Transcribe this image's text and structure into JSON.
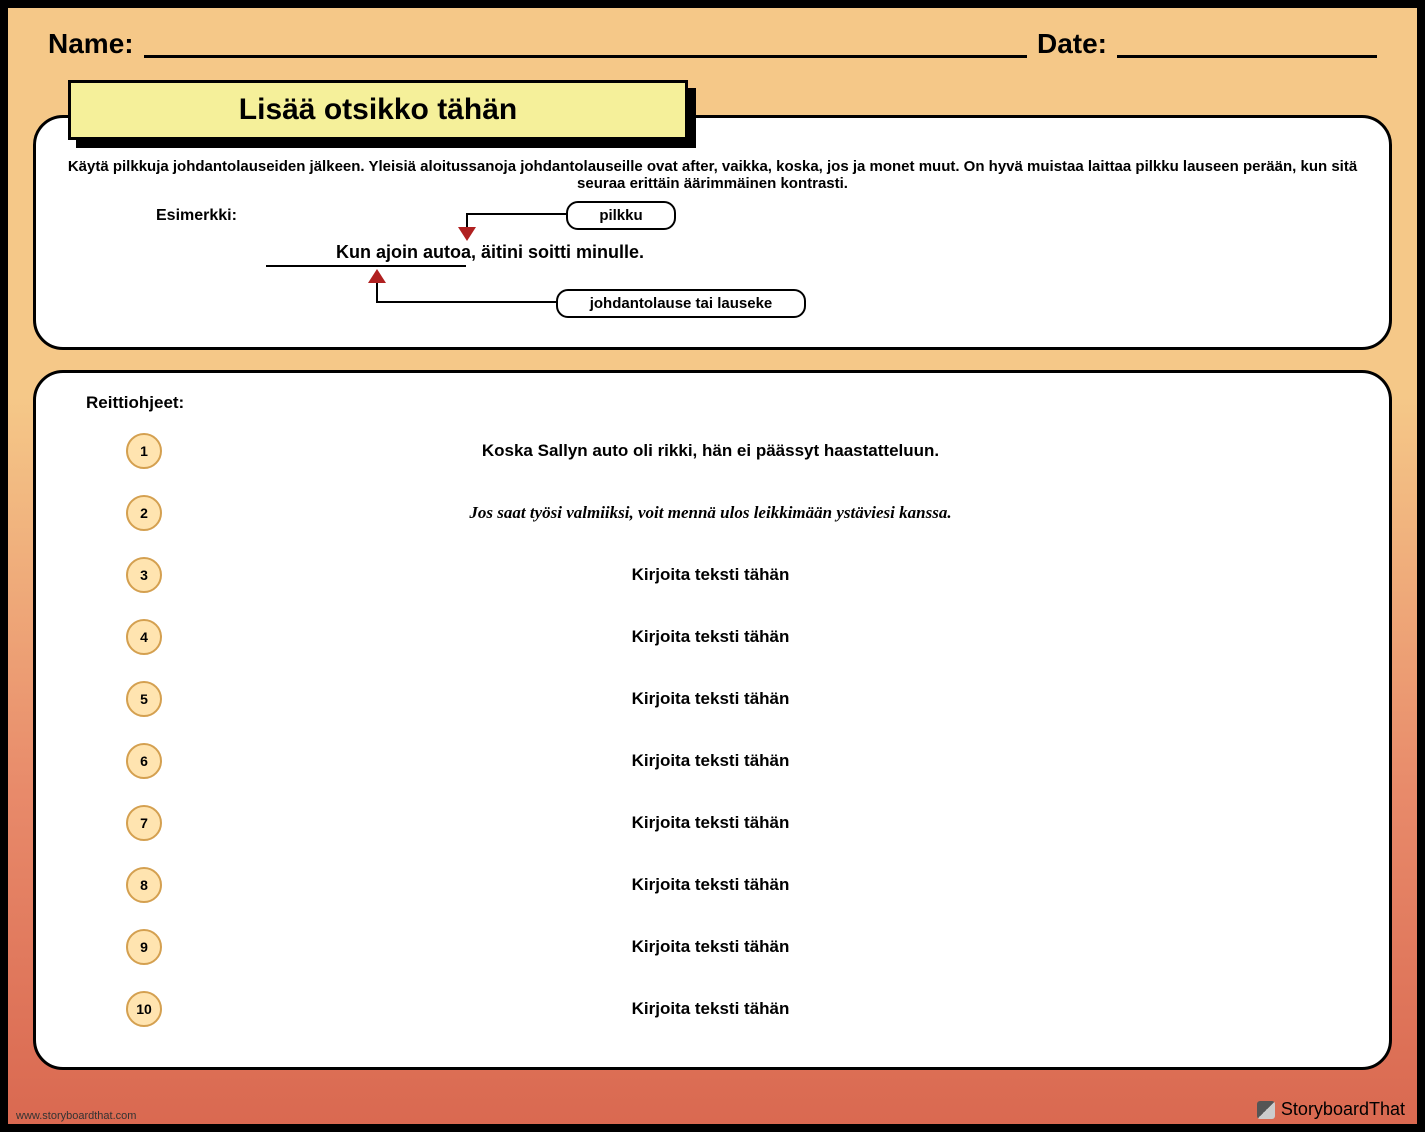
{
  "header": {
    "name_label": "Name:",
    "date_label": "Date:"
  },
  "title": "Lisää otsikko tähän",
  "instructions": "Käytä pilkkuja johdantolauseiden jälkeen. Yleisiä aloitussanoja johdantolauseille ovat after, vaikka, koska, jos ja monet muut. On hyvä muistaa laittaa pilkku lauseen perään, kun sitä seuraa erittäin äärimmäinen kontrasti.",
  "example": {
    "label": "Esimerkki:",
    "sentence": "Kun ajoin autoa, äitini soitti minulle.",
    "comma_label": "pilkku",
    "clause_label": "johdantolause tai lauseke"
  },
  "directions_label": "Reittiohjeet:",
  "items": [
    {
      "n": "1",
      "text": "Koska Sallyn auto oli rikki, hän ei päässyt haastatteluun.",
      "italic": false
    },
    {
      "n": "2",
      "text": "Jos saat työsi valmiiksi, voit mennä ulos leikkimään ystäviesi kanssa.",
      "italic": true
    },
    {
      "n": "3",
      "text": "Kirjoita teksti tähän",
      "italic": false
    },
    {
      "n": "4",
      "text": "Kirjoita teksti tähän",
      "italic": false
    },
    {
      "n": "5",
      "text": "Kirjoita teksti tähän",
      "italic": false
    },
    {
      "n": "6",
      "text": "Kirjoita teksti tähän",
      "italic": false
    },
    {
      "n": "7",
      "text": "Kirjoita teksti tähän",
      "italic": false
    },
    {
      "n": "8",
      "text": "Kirjoita teksti tähän",
      "italic": false
    },
    {
      "n": "9",
      "text": "Kirjoita teksti tähän",
      "italic": false
    },
    {
      "n": "10",
      "text": "Kirjoita teksti tähän",
      "italic": false
    }
  ],
  "footer": {
    "url": "www.storyboardthat.com",
    "brand": "StoryboardThat"
  },
  "colors": {
    "title_bg": "#f5f09a",
    "circle_bg": "#ffe4b0",
    "circle_border": "#d4a050",
    "arrow_fill": "#b02020"
  }
}
